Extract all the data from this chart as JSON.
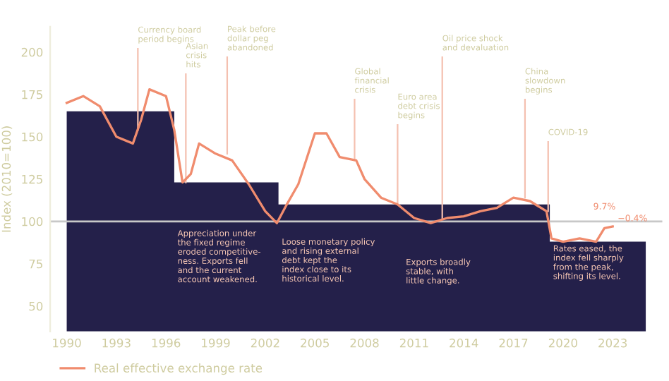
{
  "chart_data": {
    "type": "line",
    "ylabel": "Index (2010=100)",
    "xlim": [
      1989,
      2026
    ],
    "ylim": [
      35,
      215
    ],
    "xticks": [
      1990,
      1993,
      1996,
      1999,
      2002,
      2005,
      2008,
      2011,
      2014,
      2017,
      2020,
      2023
    ],
    "yticks": [
      50,
      75,
      100,
      125,
      150,
      175,
      200
    ],
    "grid": false,
    "legend": "bottom left",
    "series": [
      {
        "name": null,
        "type": "area",
        "color": "#24204a",
        "x": [
          1990,
          1996.5,
          1996.5,
          2002.8,
          2002.8,
          2019.2,
          2019.2,
          2025
        ],
        "values": [
          165,
          165,
          123,
          123,
          110,
          110,
          88,
          88
        ]
      },
      {
        "name": "Real effective exchange rate",
        "color": "#f08c6e",
        "x": [
          1990,
          1991,
          1992,
          1993,
          1994,
          1994.5,
          1995,
          1996,
          1996.5,
          1997,
          1997.5,
          1998,
          1999,
          2000,
          2001,
          2002,
          2002.7,
          2003.3,
          2004,
          2005,
          2005.7,
          2006.5,
          2007.5,
          2008,
          2009,
          2010,
          2011,
          2012,
          2013,
          2014,
          2015,
          2016,
          2017,
          2018,
          2019,
          2019.3,
          2020,
          2021,
          2022,
          2022.5,
          2023
        ],
        "values": [
          170,
          174,
          168,
          150,
          146,
          160,
          178,
          174,
          154,
          123,
          128,
          146,
          140,
          136,
          122,
          106,
          99,
          110,
          122,
          152,
          152,
          138,
          136,
          125,
          114,
          110,
          102,
          99,
          102,
          103,
          106,
          108,
          114,
          112,
          106,
          90,
          88,
          90,
          88,
          96,
          97
        ]
      }
    ],
    "ref_lines": [
      {
        "axis": "y",
        "value": 100,
        "color": "#c8c8c8"
      }
    ],
    "annotations": [
      {
        "text": "Currency board\nperiod begins",
        "x": 1994.3,
        "y": 154
      },
      {
        "text": "Asian\ncrisis\nhits",
        "x": 1997.2,
        "y": 123
      },
      {
        "text": "Peak before\ndollar peg\nabandoned",
        "x": 1999.7,
        "y": 140
      },
      {
        "text": "Global\nfinancial\ncrisis",
        "x": 2007.4,
        "y": 136
      },
      {
        "text": "Euro area\ndebt crisis\nbegins",
        "x": 2010,
        "y": 110
      },
      {
        "text": "Oil price shock\nand devaluation",
        "x": 2012.7,
        "y": 102
      },
      {
        "text": "China\nslowdown\nbegins",
        "x": 2017.7,
        "y": 114
      },
      {
        "text": "COVID-19",
        "x": 2019.1,
        "y": 106
      },
      "Appreciation under\nthe fixed regime\neroded competitive-\nness. Exports fell\nand the current\naccount weakened.",
      "Loose monetary policy\nand rising external\ndebt kept the\nindex close to its\nhistorical level.",
      "Exports broadly\nstable, with\nlittle change.",
      "Rates eased, the\nindex fell sharply\nfrom the peak,\nshifting its level.",
      "9.7%",
      "−0.4%"
    ]
  }
}
